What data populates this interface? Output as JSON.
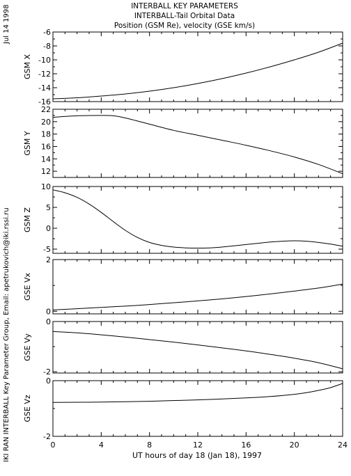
{
  "chart_data": {
    "type": "line",
    "title_lines": [
      "INTERBALL KEY PARAMETERS",
      "INTERBALL-Tail Orbital Data",
      "Position (GSM Re), velocity (GSE km/s)"
    ],
    "date_label": "Jul 14 1998",
    "credit": "IKI RAN INTERBALL Key Parameter Group, Email: apetrukovich@iki.rssi.ru",
    "xlabel": "UT hours of day  18 (Jan 18), 1997",
    "xlim": [
      0,
      24
    ],
    "xticks": [
      0,
      4,
      8,
      12,
      16,
      20,
      24
    ],
    "grid": false,
    "panels": [
      {
        "ylabel": "GSM X",
        "ylim": [
          -16,
          -6
        ],
        "yticks": [
          -16,
          -14,
          -12,
          -10,
          -8,
          -6
        ],
        "x": [
          0,
          2,
          4,
          6,
          8,
          10,
          12,
          14,
          16,
          18,
          20,
          22,
          24
        ],
        "y": [
          -15.6,
          -15.45,
          -15.2,
          -14.9,
          -14.5,
          -14.0,
          -13.4,
          -12.7,
          -11.9,
          -11.0,
          -10.0,
          -8.9,
          -7.6
        ]
      },
      {
        "ylabel": "GSM Y",
        "ylim": [
          11,
          22
        ],
        "yticks": [
          12,
          14,
          16,
          18,
          20,
          22
        ],
        "x": [
          0,
          2,
          4,
          5,
          6,
          8,
          10,
          12,
          14,
          16,
          18,
          20,
          22,
          24
        ],
        "y": [
          20.7,
          20.95,
          21.0,
          20.95,
          20.6,
          19.6,
          18.6,
          17.8,
          17.0,
          16.2,
          15.3,
          14.3,
          13.1,
          11.6
        ]
      },
      {
        "ylabel": "GSM Z",
        "ylim": [
          -6,
          10
        ],
        "yticks": [
          -5,
          0,
          5,
          10
        ],
        "x": [
          0,
          1,
          2,
          3,
          4,
          5,
          6,
          7,
          8,
          9,
          10,
          11,
          12,
          13,
          14,
          16,
          18,
          19,
          20,
          21,
          22,
          23,
          24
        ],
        "y": [
          9.2,
          8.5,
          7.4,
          5.8,
          3.8,
          1.6,
          -0.5,
          -2.2,
          -3.4,
          -4.1,
          -4.5,
          -4.7,
          -4.75,
          -4.7,
          -4.5,
          -3.9,
          -3.3,
          -3.1,
          -3.0,
          -3.1,
          -3.4,
          -3.8,
          -4.3
        ]
      },
      {
        "ylabel": "GSE Vx",
        "ylim": [
          -0.1,
          2
        ],
        "yticks": [
          0,
          2
        ],
        "x": [
          0,
          2,
          4,
          6,
          8,
          10,
          12,
          14,
          16,
          18,
          20,
          22,
          24
        ],
        "y": [
          0.05,
          0.1,
          0.15,
          0.2,
          0.26,
          0.33,
          0.4,
          0.48,
          0.57,
          0.67,
          0.78,
          0.9,
          1.05
        ]
      },
      {
        "ylabel": "GSE Vy",
        "ylim": [
          -2.05,
          0
        ],
        "yticks": [
          -2,
          0
        ],
        "x": [
          0,
          2,
          4,
          6,
          8,
          10,
          12,
          14,
          16,
          18,
          20,
          22,
          24
        ],
        "y": [
          -0.4,
          -0.45,
          -0.53,
          -0.62,
          -0.72,
          -0.82,
          -0.93,
          -1.05,
          -1.17,
          -1.31,
          -1.46,
          -1.64,
          -1.88
        ]
      },
      {
        "ylabel": "GSE Vz",
        "ylim": [
          -2,
          0
        ],
        "yticks": [
          -2,
          0
        ],
        "x": [
          0,
          4,
          8,
          12,
          16,
          18,
          20,
          21,
          22,
          23,
          24
        ],
        "y": [
          -0.78,
          -0.77,
          -0.74,
          -0.69,
          -0.62,
          -0.57,
          -0.49,
          -0.43,
          -0.35,
          -0.25,
          -0.1
        ]
      }
    ]
  }
}
